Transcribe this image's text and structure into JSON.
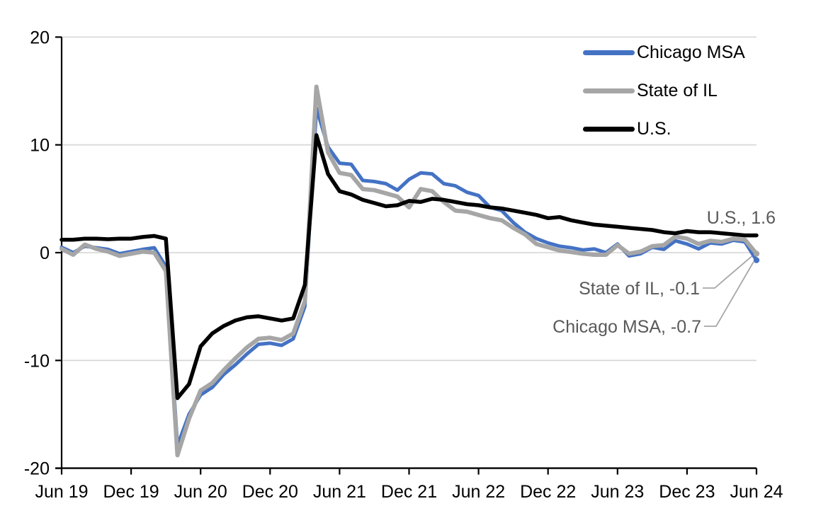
{
  "colors": {
    "chicago_msa": "#4472C4",
    "state_of_il": "#A6A6A6",
    "us": "#000000",
    "gridline": "#D9D9D9",
    "axis": "#000000",
    "annotation_text": "#595959",
    "leader_line": "#A6A6A6",
    "tick_label": "#000000"
  },
  "legend": {
    "items": [
      {
        "label": "Chicago MSA"
      },
      {
        "label": "State of IL"
      },
      {
        "label": "U.S."
      }
    ]
  },
  "annotations": {
    "us": {
      "text": "U.S., 1.6",
      "value": 1.6
    },
    "il": {
      "text": "State of IL, -0.1",
      "value": -0.1
    },
    "chicago": {
      "text": "Chicago MSA, -0.7",
      "value": -0.7
    }
  },
  "chart_data": {
    "type": "line",
    "frequency": "monthly",
    "x_start": "Jun 2019",
    "x_end": "Jun 2024",
    "x_ticklabels": [
      "Jun 19",
      "Dec 19",
      "Jun 20",
      "Dec 20",
      "Jun 21",
      "Dec 21",
      "Jun 22",
      "Dec 22",
      "Jun 23",
      "Dec 23",
      "Jun 24"
    ],
    "y_ticks": [
      20,
      10,
      0,
      -10,
      -20
    ],
    "ylim": [
      -20,
      20
    ],
    "grid": "horizontal",
    "legend_position": "top-right",
    "series": [
      {
        "name": "Chicago MSA",
        "color": "#4472C4",
        "end_value": -0.7,
        "values": [
          0.5,
          0.0,
          0.6,
          0.45,
          0.3,
          -0.1,
          0.1,
          0.3,
          0.45,
          -1.3,
          -17.9,
          -15.0,
          -13.2,
          -12.5,
          -11.3,
          -10.4,
          -9.4,
          -8.5,
          -8.4,
          -8.6,
          -8.0,
          -5.0,
          13.4,
          9.8,
          8.3,
          8.2,
          6.7,
          6.6,
          6.4,
          5.8,
          6.8,
          7.4,
          7.3,
          6.4,
          6.2,
          5.6,
          5.3,
          4.2,
          3.9,
          2.8,
          1.9,
          1.3,
          0.9,
          0.6,
          0.45,
          0.25,
          0.35,
          0.0,
          0.8,
          -0.3,
          -0.1,
          0.5,
          0.3,
          1.1,
          0.8,
          0.35,
          0.9,
          0.8,
          1.15,
          1.0,
          -0.7
        ]
      },
      {
        "name": "State of IL",
        "color": "#A6A6A6",
        "end_value": -0.1,
        "values": [
          0.35,
          -0.2,
          0.75,
          0.35,
          0.1,
          -0.3,
          -0.1,
          0.1,
          0.0,
          -1.7,
          -18.8,
          -15.4,
          -12.8,
          -12.1,
          -10.9,
          -9.8,
          -8.8,
          -8.0,
          -7.9,
          -8.1,
          -7.5,
          -4.5,
          15.4,
          9.3,
          7.4,
          7.2,
          5.9,
          5.8,
          5.5,
          5.2,
          4.2,
          5.9,
          5.7,
          4.7,
          3.9,
          3.8,
          3.5,
          3.2,
          3.0,
          2.3,
          1.7,
          0.8,
          0.5,
          0.2,
          0.05,
          -0.1,
          -0.2,
          -0.2,
          0.7,
          -0.1,
          0.1,
          0.6,
          0.7,
          1.5,
          1.3,
          0.8,
          1.1,
          1.0,
          1.3,
          1.2,
          -0.1
        ]
      },
      {
        "name": "U.S.",
        "color": "#000000",
        "end_value": 1.6,
        "values": [
          1.2,
          1.2,
          1.3,
          1.3,
          1.25,
          1.3,
          1.3,
          1.45,
          1.55,
          1.3,
          -13.5,
          -12.2,
          -8.7,
          -7.5,
          -6.8,
          -6.3,
          -6.0,
          -5.9,
          -6.1,
          -6.3,
          -6.1,
          -3.0,
          10.9,
          7.3,
          5.7,
          5.4,
          4.9,
          4.6,
          4.3,
          4.4,
          4.8,
          4.7,
          5.0,
          4.9,
          4.7,
          4.5,
          4.4,
          4.2,
          4.1,
          3.9,
          3.7,
          3.5,
          3.2,
          3.3,
          3.0,
          2.8,
          2.6,
          2.5,
          2.4,
          2.3,
          2.2,
          2.1,
          1.9,
          1.8,
          2.0,
          1.9,
          1.9,
          1.8,
          1.7,
          1.6,
          1.6
        ]
      }
    ]
  }
}
